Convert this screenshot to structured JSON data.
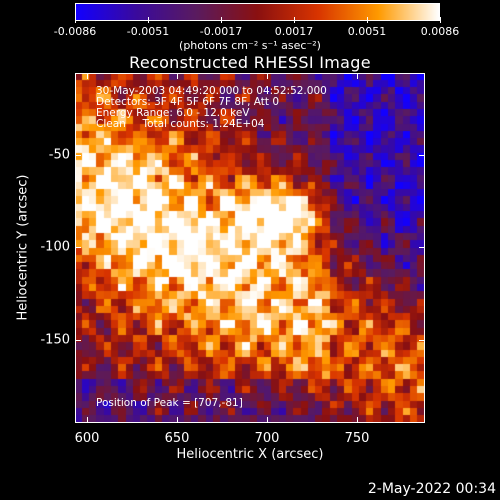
{
  "colorbar": {
    "tick_labels": [
      "-0.0086",
      "-0.0051",
      "-0.0017",
      "0.0017",
      "0.0051",
      "0.0086"
    ],
    "units_label": "(photons cm⁻² s⁻¹ asec⁻²)",
    "colors": [
      "#1200ff",
      "#3a0a9c",
      "#5a1b5e",
      "#8a1010",
      "#d83400",
      "#ff9a00",
      "#ffffff"
    ]
  },
  "title": "Reconstructed RHESSI Image",
  "info": {
    "time_range": "30-May-2003 04:49:20.000 to 04:52:52.000",
    "detectors": "Detectors: 3F 4F 5F 6F 7F 8F, Att 0",
    "energy_range": "Energy Range: 6.0 - 12.0 keV",
    "clean_counts": "Clean     Total counts: 1.24E+04"
  },
  "peak": "Position of Peak = [707,-81]",
  "axes": {
    "xlabel": "Heliocentric X (arcsec)",
    "ylabel": "Heliocentric Y (arcsec)",
    "x_ticks": [
      "600",
      "650",
      "700",
      "750"
    ],
    "y_ticks": [
      "-50",
      "-100",
      "-150"
    ]
  },
  "timestamp": "2-May-2022 00:34",
  "chart_data": {
    "type": "heatmap",
    "title": "Reconstructed RHESSI Image",
    "xlabel": "Heliocentric X (arcsec)",
    "ylabel": "Heliocentric Y (arcsec)",
    "xlim": [
      594,
      786
    ],
    "ylim": [
      -196,
      -4
    ],
    "zlim": [
      -0.0086,
      0.0086
    ],
    "peak_position": [
      707,
      -81
    ],
    "colorbar_ticks": [
      -0.0086,
      -0.0051,
      -0.0017,
      0.0017,
      0.0051,
      0.0086
    ]
  }
}
